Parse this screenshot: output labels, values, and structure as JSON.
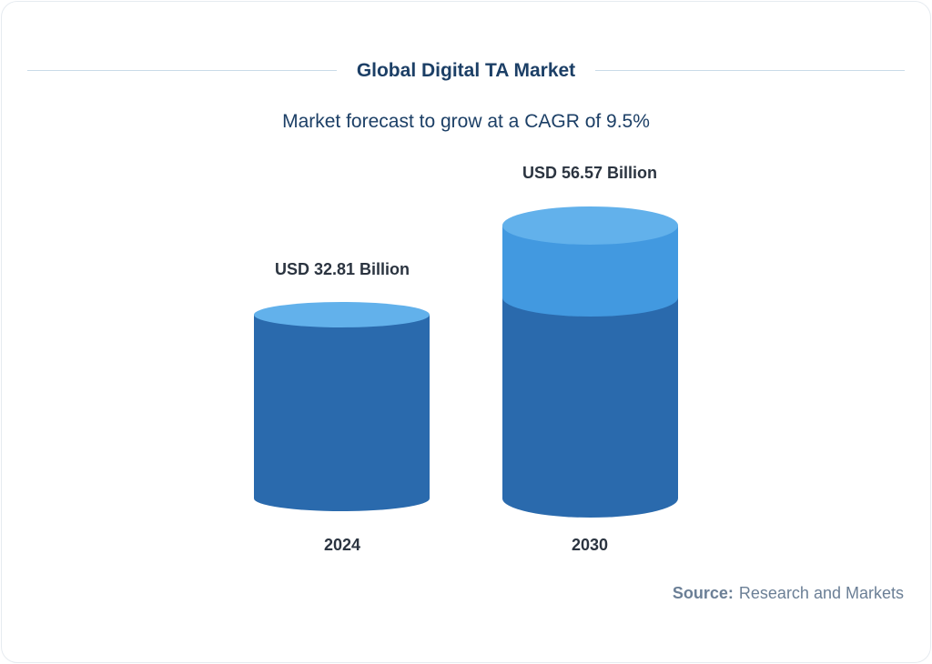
{
  "title": "Global Digital TA Market",
  "subtitle": "Market forecast to grow at a CAGR of 9.5%",
  "source_label": "Source:",
  "source_value": "Research and Markets",
  "chart_data": {
    "type": "bar",
    "style": "3d-cylinder",
    "categories": [
      "2024",
      "2030"
    ],
    "values": [
      32.81,
      56.57
    ],
    "data_labels": [
      "USD 32.81 Billion",
      "USD 56.57 Billion"
    ],
    "unit": "USD Billion",
    "colors": {
      "body": "#2a6aad",
      "top": "#62b1eb",
      "growth": "#4299e0",
      "title": "#1c3f66"
    }
  }
}
